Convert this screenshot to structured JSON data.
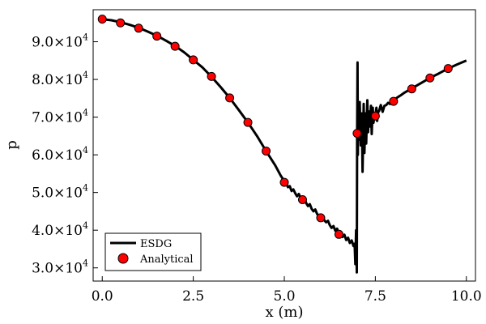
{
  "chart_data": {
    "type": "line",
    "xlabel": "x (m)",
    "ylabel": "p",
    "xlim": [
      -0.25,
      10.25
    ],
    "ylim": [
      26500,
      98500
    ],
    "grid": false,
    "legend_position": "bottom-left",
    "x_ticks": [
      {
        "value": 0,
        "label": "0.0"
      },
      {
        "value": 2.5,
        "label": "2.5"
      },
      {
        "value": 5,
        "label": "5.0"
      },
      {
        "value": 7.5,
        "label": "7.5"
      },
      {
        "value": 10,
        "label": "10.0"
      }
    ],
    "y_ticks": [
      {
        "value": 30000,
        "mantissa": "3.0×10",
        "exp": "4"
      },
      {
        "value": 40000,
        "mantissa": "4.0×10",
        "exp": "4"
      },
      {
        "value": 50000,
        "mantissa": "5.0×10",
        "exp": "4"
      },
      {
        "value": 60000,
        "mantissa": "6.0×10",
        "exp": "4"
      },
      {
        "value": 70000,
        "mantissa": "7.0×10",
        "exp": "4"
      },
      {
        "value": 80000,
        "mantissa": "8.0×10",
        "exp": "4"
      },
      {
        "value": 90000,
        "mantissa": "9.0×10",
        "exp": "4"
      }
    ],
    "series": [
      {
        "name": "ESDG",
        "style": "line",
        "color": "#000000",
        "x": [
          0.0,
          0.25,
          0.5,
          0.75,
          1.0,
          1.25,
          1.5,
          1.75,
          2.0,
          2.25,
          2.5,
          2.75,
          3.0,
          3.25,
          3.5,
          3.75,
          4.0,
          4.25,
          4.5,
          4.75,
          4.9,
          5.0,
          5.05,
          5.1,
          5.15,
          5.2,
          5.25,
          5.3,
          5.35,
          5.4,
          5.45,
          5.5,
          5.55,
          5.6,
          5.65,
          5.7,
          5.75,
          5.8,
          5.85,
          5.9,
          5.95,
          6.0,
          6.05,
          6.1,
          6.15,
          6.2,
          6.25,
          6.3,
          6.35,
          6.4,
          6.45,
          6.5,
          6.55,
          6.6,
          6.65,
          6.7,
          6.75,
          6.8,
          6.85,
          6.9,
          6.93,
          6.95,
          6.97,
          6.99,
          7.0,
          7.01,
          7.02,
          7.03,
          7.05,
          7.07,
          7.1,
          7.13,
          7.15,
          7.18,
          7.2,
          7.23,
          7.25,
          7.28,
          7.3,
          7.33,
          7.35,
          7.38,
          7.4,
          7.43,
          7.45,
          7.48,
          7.5,
          7.53,
          7.55,
          7.58,
          7.6,
          7.65,
          7.7,
          7.75,
          7.8,
          7.85,
          7.9,
          7.95,
          8.0,
          8.05,
          8.1,
          8.2,
          8.3,
          8.5,
          8.75,
          9.0,
          9.25,
          9.5,
          9.75,
          10.0
        ],
        "y": [
          96000,
          95700,
          95200,
          94500,
          93700,
          92700,
          91600,
          90300,
          88900,
          87200,
          85200,
          83200,
          80700,
          78000,
          75100,
          71900,
          68600,
          65000,
          61000,
          57200,
          54500,
          53000,
          52600,
          51400,
          51700,
          50400,
          50800,
          49800,
          49000,
          49600,
          48400,
          48000,
          48600,
          47200,
          46400,
          46900,
          45700,
          45000,
          45500,
          44300,
          43800,
          43400,
          43900,
          42600,
          42100,
          42500,
          41300,
          40600,
          41100,
          39900,
          40400,
          39000,
          39600,
          38200,
          38800,
          37400,
          38000,
          36600,
          37300,
          35800,
          36400,
          31000,
          40000,
          28800,
          65500,
          84500,
          60000,
          72000,
          64000,
          74000,
          62500,
          71000,
          55500,
          73500,
          60500,
          71000,
          63000,
          74500,
          66000,
          71500,
          67500,
          73000,
          65500,
          72500,
          68500,
          71000,
          70200,
          72500,
          69000,
          71500,
          71600,
          73200,
          71400,
          73000,
          73200,
          73800,
          73500,
          74600,
          74500,
          74800,
          75200,
          75800,
          76500,
          77600,
          79000,
          80400,
          81600,
          82900,
          84000,
          85000
        ]
      },
      {
        "name": "Analytical",
        "style": "markers",
        "color": "#ff0000",
        "x": [
          0.0,
          0.5,
          1.0,
          1.5,
          2.0,
          2.5,
          3.0,
          3.5,
          4.0,
          4.5,
          5.0,
          5.5,
          6.0,
          6.5,
          7.0,
          7.5,
          8.0,
          8.5,
          9.0,
          9.5
        ],
        "y": [
          96000,
          95000,
          93600,
          91500,
          88800,
          85200,
          80800,
          75100,
          68600,
          61000,
          52700,
          48100,
          43300,
          38900,
          65700,
          70300,
          74200,
          77500,
          80400,
          82900
        ]
      }
    ]
  }
}
